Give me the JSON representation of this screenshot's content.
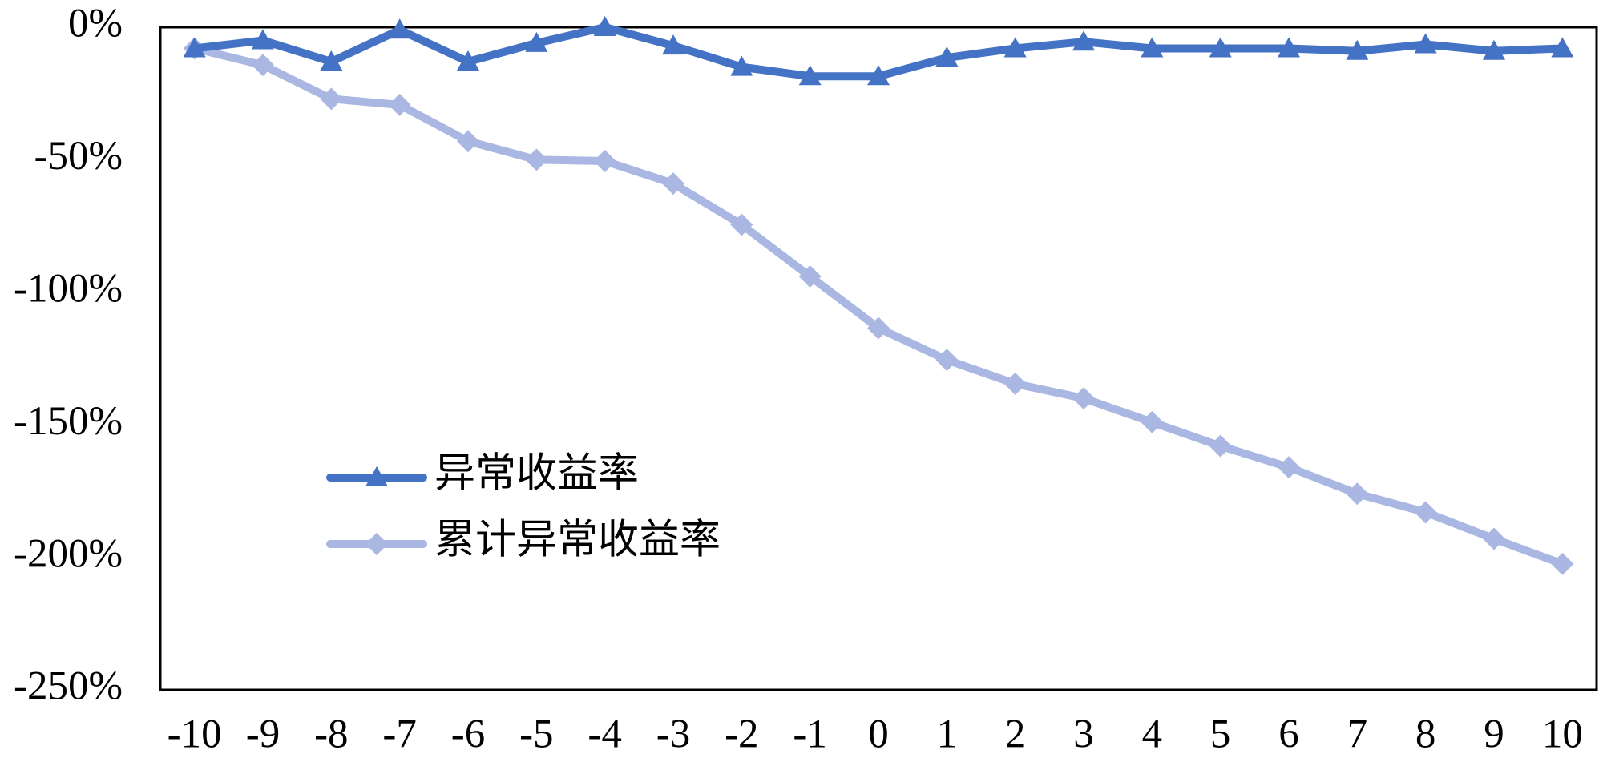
{
  "chart_data": {
    "type": "line",
    "categories": [
      "-10",
      "-9",
      "-8",
      "-7",
      "-6",
      "-5",
      "-4",
      "-3",
      "-2",
      "-1",
      "0",
      "1",
      "2",
      "3",
      "4",
      "5",
      "6",
      "7",
      "8",
      "9",
      "10"
    ],
    "series": [
      {
        "name": "异常收益率",
        "color": "#4472c4",
        "marker": "triangle",
        "values": [
          -8,
          -5,
          -13,
          -1,
          -13,
          -6,
          0,
          -7,
          -15,
          -18.5,
          -18.5,
          -11.5,
          -8,
          -5.5,
          -8,
          -8,
          -8,
          -9,
          -6.5,
          -9,
          -8
        ]
      },
      {
        "name": "累计异常收益率",
        "color": "#a9b7e2",
        "marker": "diamond",
        "values": [
          -8,
          -14.3,
          -27,
          -29.3,
          -43,
          -50,
          -50.5,
          -59,
          -74.5,
          -94,
          -113.5,
          -125.5,
          -134.5,
          -140,
          -149,
          -158,
          -166,
          -176,
          -183,
          -193,
          -202.5
        ]
      }
    ],
    "ylim": [
      0,
      -250
    ],
    "yticks": [
      {
        "value": 0,
        "label": "0%"
      },
      {
        "value": -50,
        "label": "-50%"
      },
      {
        "value": -100,
        "label": "-100%"
      },
      {
        "value": -150,
        "label": "-150%"
      },
      {
        "value": -200,
        "label": "-200%"
      },
      {
        "value": -250,
        "label": "-250%"
      }
    ]
  }
}
